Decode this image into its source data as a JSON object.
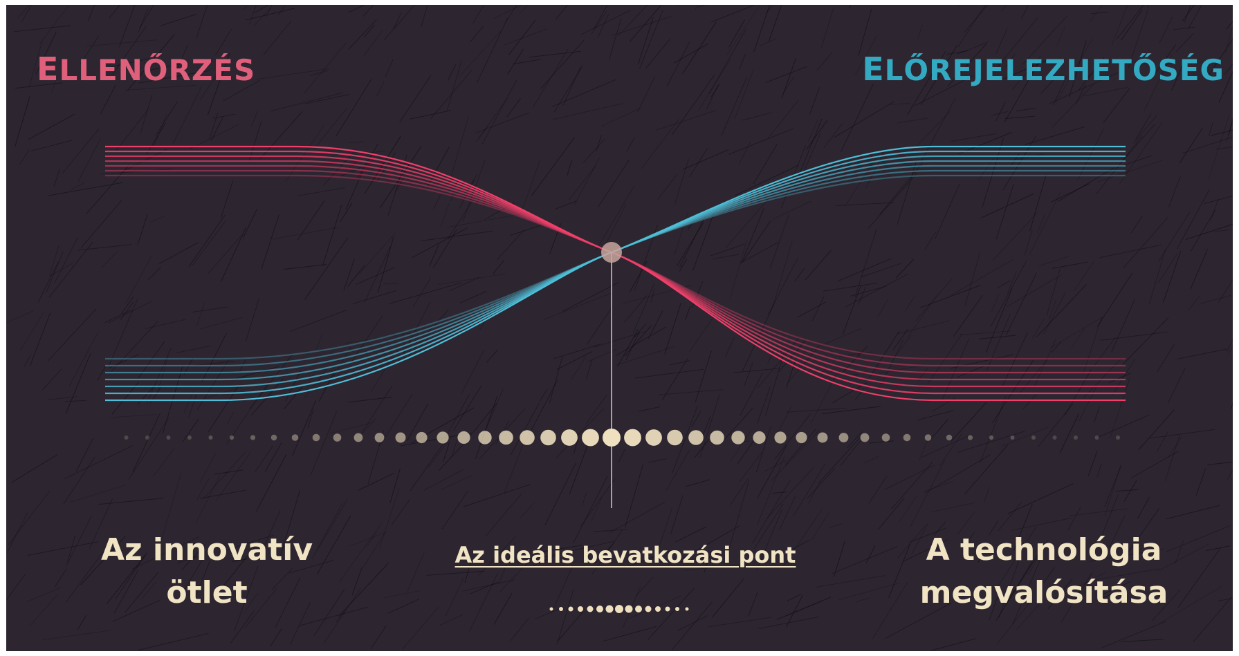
{
  "titles": {
    "left": {
      "cap": "E",
      "rest": "LLENŐRZÉS"
    },
    "right": {
      "cap": "E",
      "rest": "LŐREJELEZHETŐSÉG"
    }
  },
  "labels": {
    "left": [
      "Az innovatív",
      "ötlet"
    ],
    "center": "Az ideális bevatkozási pont",
    "right": [
      "A technológia",
      "megvalósítása"
    ]
  },
  "colors": {
    "background": "#2d2631",
    "control": "#e0607c",
    "control_line": "#f0406a",
    "predictability": "#34a9c2",
    "predictability_line": "#4fbfd8",
    "label": "#f1e4c4",
    "dot": "#efe1c0"
  }
}
